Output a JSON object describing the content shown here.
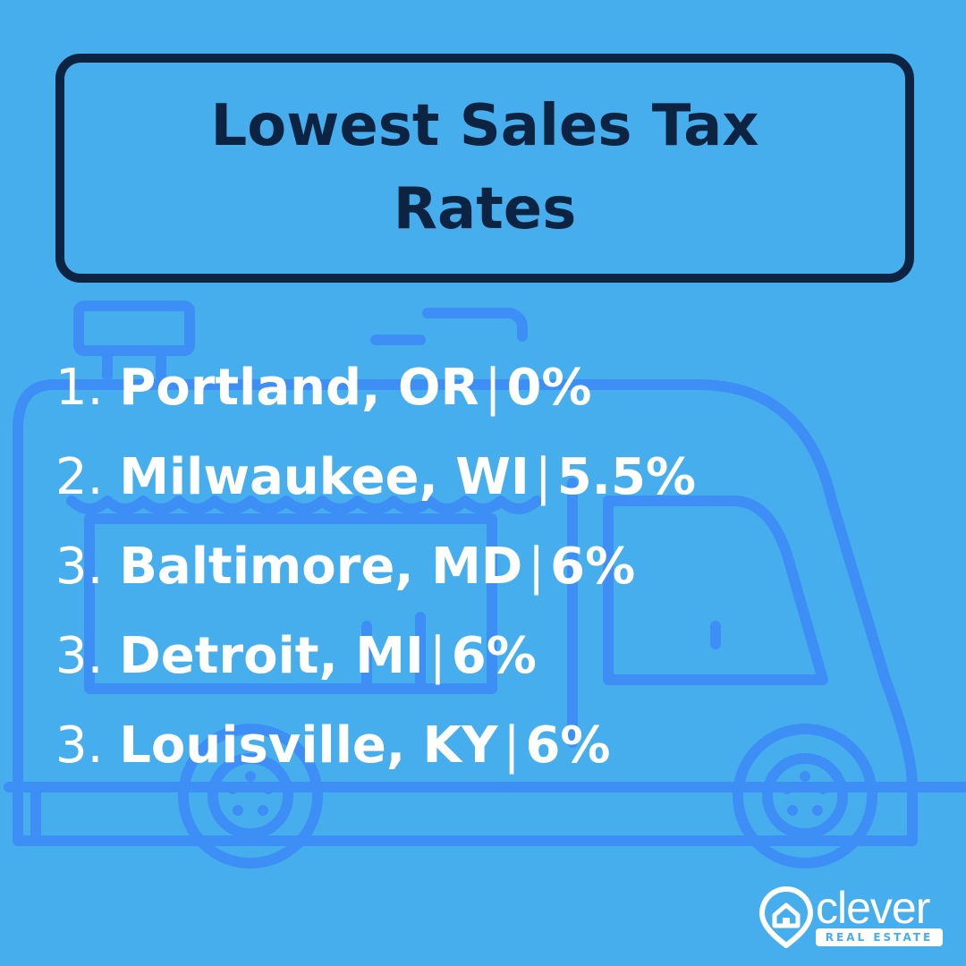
{
  "title": "Lowest Sales Tax Rates",
  "items": [
    {
      "rank": "1.",
      "city": "Portland, OR",
      "rate": "0%"
    },
    {
      "rank": "2.",
      "city": "Milwaukee, WI",
      "rate": "5.5%"
    },
    {
      "rank": "3.",
      "city": "Baltimore, MD",
      "rate": "6%"
    },
    {
      "rank": "3.",
      "city": "Detroit, MI",
      "rate": "6%"
    },
    {
      "rank": "3.",
      "city": "Louisville, KY",
      "rate": "6%"
    }
  ],
  "separator": "|",
  "logo": {
    "word": "clever",
    "tagline": "REAL ESTATE"
  },
  "colors": {
    "background": "#47aeee",
    "title": "#0c2441",
    "text": "#ffffff",
    "truck_outline": "#3d8ef5"
  },
  "icons": {
    "background": "food-truck-icon",
    "logo": "location-pin-house-icon"
  }
}
